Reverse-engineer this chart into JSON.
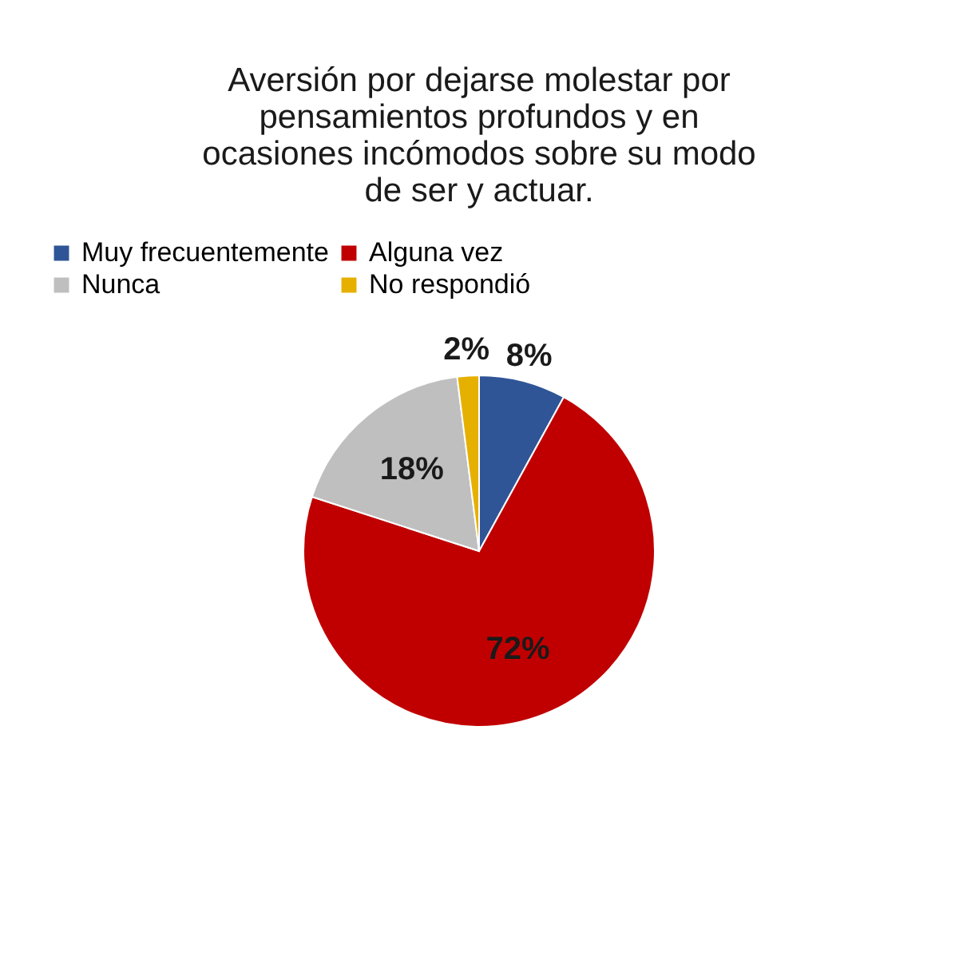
{
  "chart_data": {
    "type": "pie",
    "title": "Aversión por dejarse molestar por pensamientos profundos  y en ocasiones incómodos sobre su modo de ser y actuar.",
    "categories": [
      "Muy frecuentemente",
      "Alguna vez",
      "Nunca",
      "No respondió"
    ],
    "values": [
      8,
      72,
      18,
      2
    ],
    "colors": [
      "#2f5597",
      "#c00000",
      "#bfbfbf",
      "#e6b000"
    ],
    "value_labels": [
      "8%",
      "72%",
      "18%",
      "2%"
    ],
    "legend": "top"
  }
}
